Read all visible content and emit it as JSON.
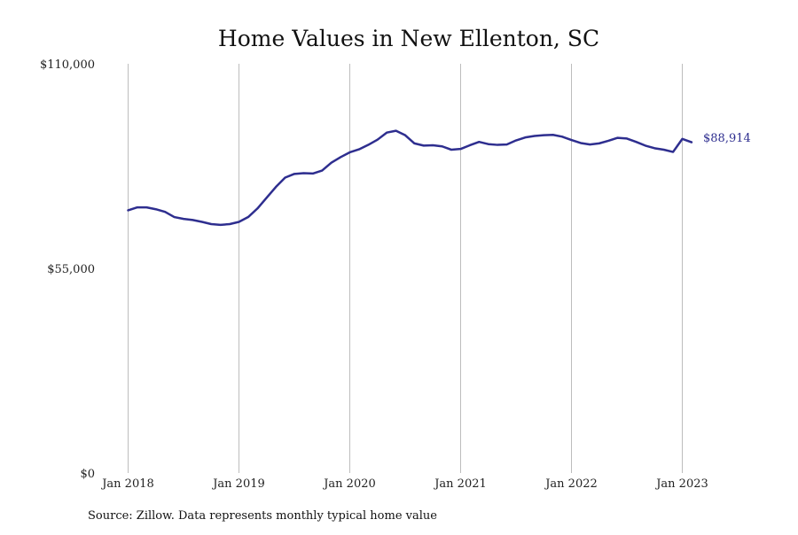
{
  "chart_data": {
    "type": "line",
    "title": "Home Values in New Ellenton, SC",
    "xlabel": "",
    "ylabel": "",
    "ylim": [
      0,
      110000
    ],
    "y_ticks": [
      "$0",
      "$55,000",
      "$110,000"
    ],
    "x_ticks": [
      "Jan 2018",
      "Jan 2019",
      "Jan 2020",
      "Jan 2021",
      "Jan 2022",
      "Jan 2023"
    ],
    "grid": "vertical",
    "end_label": "$88,914",
    "line_color": "#2e2e8f",
    "source": "Source: Zillow. Data represents monthly typical home value",
    "series": [
      {
        "x": [
          "2018-01",
          "2018-02",
          "2018-03",
          "2018-04",
          "2018-05",
          "2018-06",
          "2018-07",
          "2018-08",
          "2018-09",
          "2018-10",
          "2018-11",
          "2018-12",
          "2019-01",
          "2019-02",
          "2019-03",
          "2019-04",
          "2019-05",
          "2019-06",
          "2019-07",
          "2019-08",
          "2019-09",
          "2019-10",
          "2019-11",
          "2019-12",
          "2020-01",
          "2020-02",
          "2020-03",
          "2020-04",
          "2020-05",
          "2020-06",
          "2020-07",
          "2020-08",
          "2020-09",
          "2020-10",
          "2020-11",
          "2020-12",
          "2021-01",
          "2021-02",
          "2021-03",
          "2021-04",
          "2021-05",
          "2021-06",
          "2021-07",
          "2021-08",
          "2021-09",
          "2021-10",
          "2021-11",
          "2021-12",
          "2022-01",
          "2022-02",
          "2022-03",
          "2022-04",
          "2022-05",
          "2022-06",
          "2022-07",
          "2022-08",
          "2022-09",
          "2022-10",
          "2022-11",
          "2022-12",
          "2023-01",
          "2023-02"
        ],
        "values": [
          70600,
          71400,
          71400,
          70900,
          70200,
          68800,
          68300,
          68000,
          67500,
          66900,
          66700,
          66900,
          67500,
          68800,
          71100,
          74000,
          76900,
          79400,
          80400,
          80600,
          80500,
          81300,
          83400,
          84900,
          86200,
          87000,
          88200,
          89600,
          91500,
          92000,
          90800,
          88600,
          88000,
          88100,
          87800,
          86900,
          87100,
          88100,
          89000,
          88400,
          88200,
          88300,
          89400,
          90200,
          90600,
          90800,
          90900,
          90400,
          89500,
          88700,
          88300,
          88600,
          89300,
          90100,
          89900,
          89000,
          88000,
          87300,
          86900,
          86300,
          89800,
          88914
        ]
      }
    ]
  }
}
